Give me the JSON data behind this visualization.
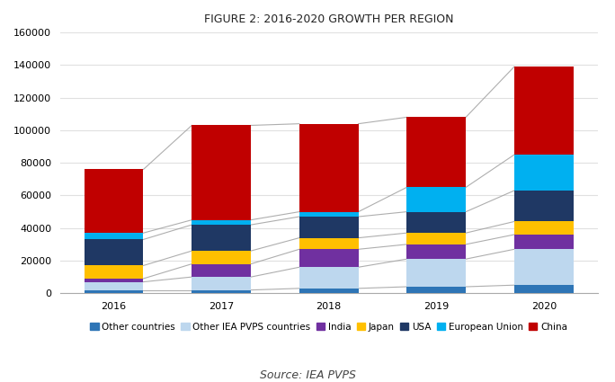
{
  "title": "FIGURE 2: 2016-2020 GROWTH PER REGION",
  "source": "Source: IEA PVPS",
  "years": [
    "2016",
    "2017",
    "2018",
    "2019",
    "2020"
  ],
  "categories": [
    "Other countries",
    "Other IEA PVPS countries",
    "India",
    "Japan",
    "USA",
    "European Union",
    "China"
  ],
  "colors": [
    "#2E75B6",
    "#BDD7EE",
    "#7030A0",
    "#FFC000",
    "#1F3864",
    "#00B0F0",
    "#C00000"
  ],
  "data": {
    "Other countries": [
      2000,
      2000,
      3000,
      4000,
      5000
    ],
    "Other IEA PVPS countries": [
      5000,
      8000,
      13000,
      17000,
      22000
    ],
    "India": [
      2000,
      8000,
      11000,
      9000,
      9000
    ],
    "Japan": [
      8000,
      8000,
      7000,
      7000,
      8000
    ],
    "USA": [
      16000,
      16000,
      13000,
      13000,
      19000
    ],
    "European Union": [
      4000,
      3000,
      3000,
      15000,
      22000
    ],
    "China": [
      39000,
      58000,
      54000,
      43000,
      54000
    ]
  },
  "ylim": [
    0,
    160000
  ],
  "yticks": [
    0,
    20000,
    40000,
    60000,
    80000,
    100000,
    120000,
    140000,
    160000
  ],
  "background_color": "#FFFFFF",
  "plot_bg_color": "#FFFFFF",
  "bar_width": 0.55,
  "grid_color": "#E0E0E0",
  "title_fontsize": 9,
  "tick_fontsize": 8,
  "legend_fontsize": 7.5
}
